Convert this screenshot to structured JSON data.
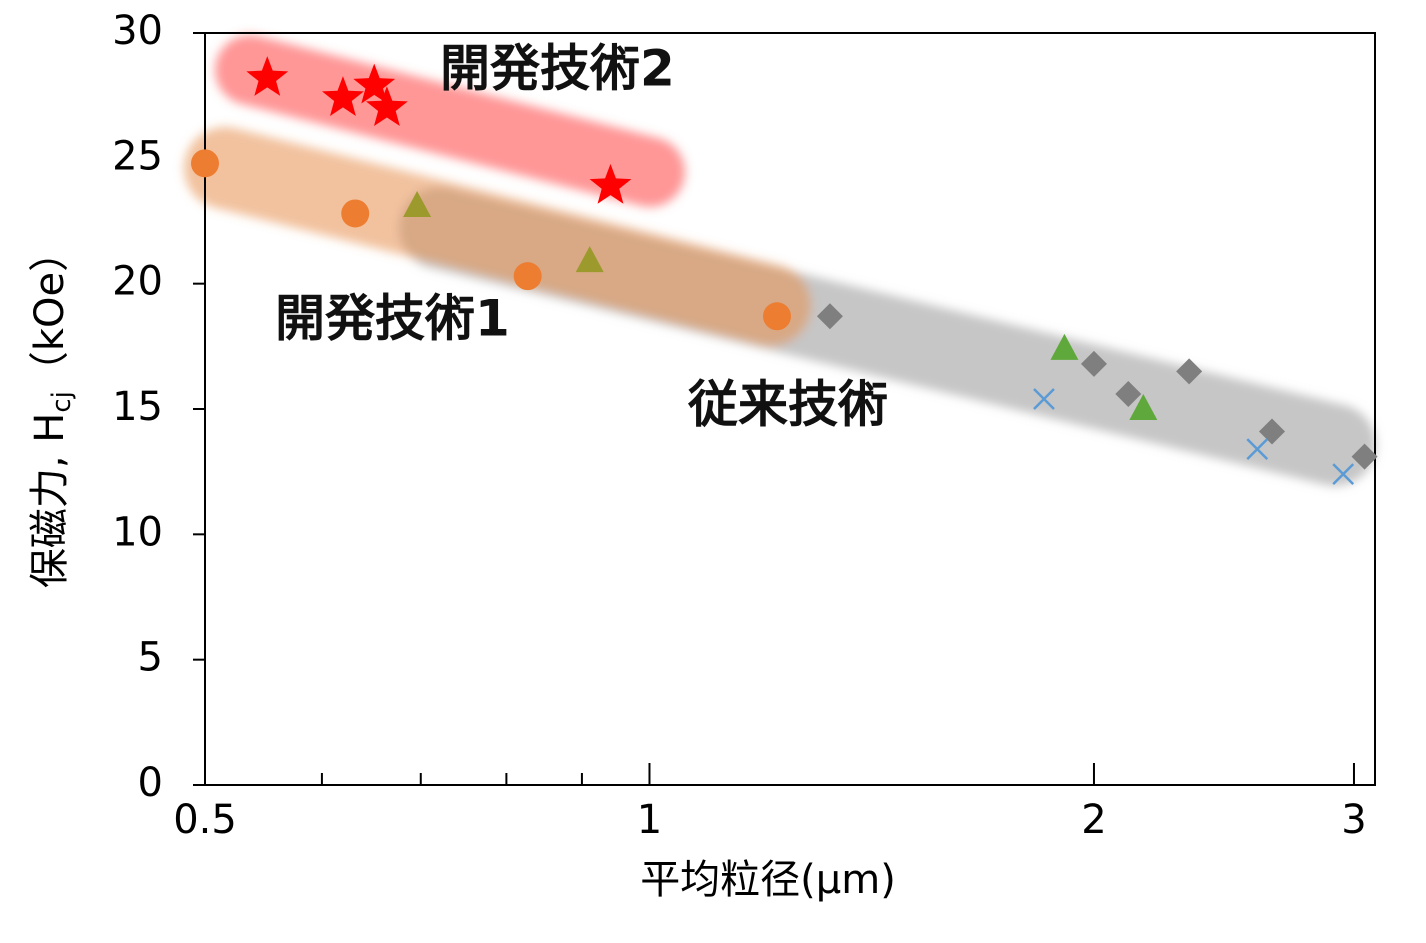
{
  "chart_data": {
    "type": "scatter",
    "xlabel": "平均粒径(μm)",
    "ylabel": "保磁力, H",
    "ylabel_sub": "cj",
    "ylabel_unit": "（kOe）",
    "xscale": "log",
    "xlim": [
      0.5,
      3.1
    ],
    "xticks": [
      0.5,
      1,
      2,
      3
    ],
    "xminorticks": [
      0.6,
      0.7,
      0.8,
      0.9
    ],
    "ylim": [
      0,
      30
    ],
    "yticks": [
      0,
      5,
      10,
      15,
      20,
      25,
      30
    ],
    "annotations": [
      "開発技術2",
      "開発技術1",
      "従来技術"
    ],
    "series": [
      {
        "marker": "star",
        "color": "#ff0000",
        "x": [
          0.551,
          0.62,
          0.651,
          0.664,
          0.941
        ],
        "values": [
          28.2,
          27.4,
          27.9,
          27.0,
          23.9
        ]
      },
      {
        "marker": "circle",
        "color": "#ed7d31",
        "x": [
          0.5,
          0.632,
          0.827,
          1.22
        ],
        "values": [
          24.8,
          22.8,
          20.3,
          18.7
        ]
      },
      {
        "marker": "triangle",
        "color": "#9c9a2c",
        "x": [
          0.696,
          0.911
        ],
        "values": [
          23.1,
          20.9
        ]
      },
      {
        "marker": "triangle",
        "color": "#5fa83b",
        "x": [
          1.91,
          2.16
        ],
        "values": [
          17.4,
          15.0
        ]
      },
      {
        "marker": "diamond",
        "color": "#7f7f7f",
        "x": [
          1.325,
          2.0,
          2.11,
          2.32,
          2.64,
          3.05
        ],
        "values": [
          18.7,
          16.8,
          15.6,
          16.5,
          14.1,
          13.1
        ]
      },
      {
        "marker": "cross",
        "color": "#5b9bd5",
        "x": [
          1.85,
          2.58,
          2.95
        ],
        "values": [
          15.4,
          13.4,
          12.4
        ]
      }
    ]
  }
}
